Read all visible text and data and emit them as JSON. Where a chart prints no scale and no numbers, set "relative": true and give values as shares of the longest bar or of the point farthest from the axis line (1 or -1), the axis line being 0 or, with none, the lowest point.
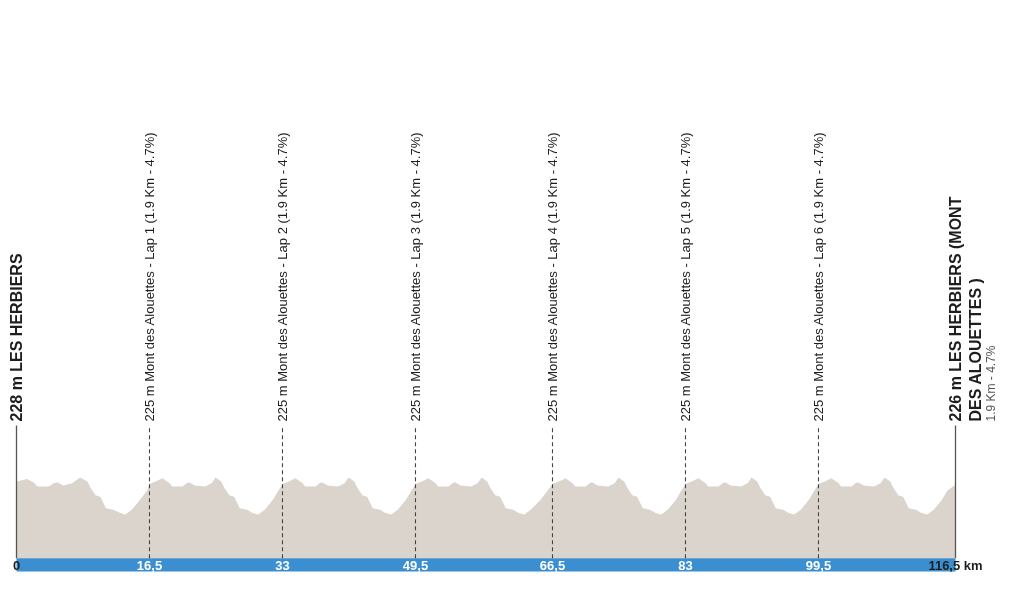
{
  "chart_data": {
    "type": "area",
    "relative": true,
    "x": [
      0,
      1.3,
      2.1,
      2.6,
      4.0,
      4.6,
      5.1,
      5.8,
      6.9,
      7.9,
      8.8,
      9.2,
      9.8,
      10.4,
      11.1,
      12.0,
      12.9,
      13.5,
      14.3,
      15.3,
      16.2,
      16.5,
      17.3,
      18.1,
      19.0,
      19.3,
      20.6,
      21.1,
      21.4,
      22.1,
      23.4,
      24.2,
      24.7,
      25.4,
      25.8,
      26.4,
      27.0,
      27.7,
      28.6,
      29.3,
      30.0,
      30.8,
      31.8,
      32.5,
      33,
      33.8,
      34.6,
      35.5,
      35.8,
      37.1,
      37.6,
      37.9,
      38.6,
      39.9,
      40.7,
      41.2,
      41.9,
      42.3,
      42.9,
      43.5,
      44.2,
      45.1,
      45.8,
      46.5,
      47.3,
      48.3,
      49.0,
      49.5,
      50.3,
      51.1,
      52.0,
      52.3,
      53.6,
      54.1,
      54.4,
      55.1,
      56.4,
      57.2,
      57.7,
      58.4,
      58.8,
      59.4,
      60.0,
      60.7,
      61.6,
      62.3,
      63.0,
      63.8,
      65.0,
      65.9,
      66.5,
      67.3,
      68.1,
      69.0,
      69.3,
      70.6,
      71.1,
      71.4,
      72.1,
      73.4,
      74.2,
      74.7,
      75.4,
      75.8,
      76.4,
      77.0,
      77.7,
      78.6,
      79.3,
      80.0,
      80.8,
      81.8,
      82.5,
      83,
      83.8,
      84.6,
      85.5,
      85.8,
      87.1,
      87.6,
      87.9,
      88.6,
      89.9,
      90.7,
      91.2,
      91.9,
      92.3,
      92.9,
      93.5,
      94.2,
      95.1,
      95.8,
      96.5,
      97.3,
      98.3,
      99.0,
      99.5,
      100.3,
      101.1,
      102.0,
      102.3,
      103.6,
      104.1,
      104.4,
      105.1,
      106.4,
      107.2,
      107.7,
      108.4,
      108.8,
      109.4,
      110.0,
      110.7,
      111.6,
      112.3,
      113.0,
      113.8,
      114.8,
      115.5,
      116.5
    ],
    "series": [
      {
        "color": "#dad4cc",
        "values": [
          0.95,
          0.98,
          0.94,
          0.89,
          0.89,
          0.93,
          0.94,
          0.9,
          0.93,
          1,
          0.95,
          0.87,
          0.78,
          0.76,
          0.62,
          0.6,
          0.56,
          0.54,
          0.6,
          0.72,
          0.84,
          0.92,
          0.95,
          0.99,
          0.93,
          0.89,
          0.89,
          0.93,
          0.94,
          0.9,
          0.89,
          0.93,
          1,
          0.95,
          0.87,
          0.78,
          0.76,
          0.62,
          0.6,
          0.56,
          0.54,
          0.6,
          0.72,
          0.84,
          0.92,
          0.95,
          0.99,
          0.93,
          0.89,
          0.89,
          0.93,
          0.94,
          0.9,
          0.89,
          0.93,
          1,
          0.95,
          0.87,
          0.78,
          0.76,
          0.62,
          0.6,
          0.56,
          0.54,
          0.6,
          0.72,
          0.84,
          0.92,
          0.95,
          0.99,
          0.93,
          0.89,
          0.89,
          0.93,
          0.94,
          0.9,
          0.89,
          0.93,
          1,
          0.95,
          0.87,
          0.78,
          0.76,
          0.62,
          0.6,
          0.56,
          0.54,
          0.6,
          0.72,
          0.84,
          0.92,
          0.95,
          0.99,
          0.93,
          0.89,
          0.89,
          0.93,
          0.94,
          0.9,
          0.89,
          0.93,
          1,
          0.95,
          0.87,
          0.78,
          0.76,
          0.62,
          0.6,
          0.56,
          0.54,
          0.6,
          0.72,
          0.84,
          0.92,
          0.95,
          0.99,
          0.93,
          0.89,
          0.89,
          0.93,
          0.94,
          0.9,
          0.89,
          0.93,
          1,
          0.95,
          0.87,
          0.78,
          0.76,
          0.62,
          0.6,
          0.56,
          0.54,
          0.6,
          0.72,
          0.84,
          0.92,
          0.95,
          0.99,
          0.93,
          0.89,
          0.89,
          0.93,
          0.94,
          0.9,
          0.89,
          0.93,
          1,
          0.95,
          0.87,
          0.78,
          0.76,
          0.62,
          0.6,
          0.56,
          0.54,
          0.6,
          0.72,
          0.84,
          0.91
        ]
      }
    ],
    "xlim": [
      0,
      116.5
    ],
    "xticks": [
      0,
      {
        "value": 16.5,
        "label": "16,5"
      },
      33,
      {
        "value": 49.5,
        "label": "49,5"
      },
      {
        "value": 66.5,
        "label": "66,5"
      },
      83,
      {
        "value": 99.5,
        "label": "99,5"
      },
      {
        "value": 116.5,
        "label": "116,5 km"
      }
    ],
    "ref_lines": [
      {
        "axis": "x",
        "value": 0,
        "label": "228 m LES HERBIERS",
        "line_style": "solid",
        "color": "#555555"
      },
      {
        "axis": "x",
        "value": 16.5,
        "label": "225 m Mont des Alouettes - Lap 1 (1.9 Km - 4.7%)",
        "line_style": "dashed",
        "color": "#444444"
      },
      {
        "axis": "x",
        "value": 33,
        "label": "225 m Mont des Alouettes - Lap 2 (1.9 Km - 4.7%)",
        "line_style": "dashed",
        "color": "#444444"
      },
      {
        "axis": "x",
        "value": 49.5,
        "label": "225 m Mont des Alouettes - Lap 3 (1.9 Km - 4.7%)",
        "line_style": "dashed",
        "color": "#444444"
      },
      {
        "axis": "x",
        "value": 66.5,
        "label": "225 m Mont des Alouettes - Lap 4 (1.9 Km - 4.7%)",
        "line_style": "dashed",
        "color": "#444444"
      },
      {
        "axis": "x",
        "value": 83,
        "label": "225 m Mont des Alouettes - Lap 5 (1.9 Km - 4.7%)",
        "line_style": "dashed",
        "color": "#444444"
      },
      {
        "axis": "x",
        "value": 99.5,
        "label": "225 m Mont des Alouettes - Lap 6 (1.9 Km - 4.7%)",
        "line_style": "dashed",
        "color": "#444444"
      },
      {
        "axis": "x",
        "value": 116.5,
        "label": "226 m LES HERBIERS (MONT DES ALOUETTES )\n1.9 Km - 4.7%",
        "line_style": "solid",
        "color": "#555555"
      }
    ]
  }
}
